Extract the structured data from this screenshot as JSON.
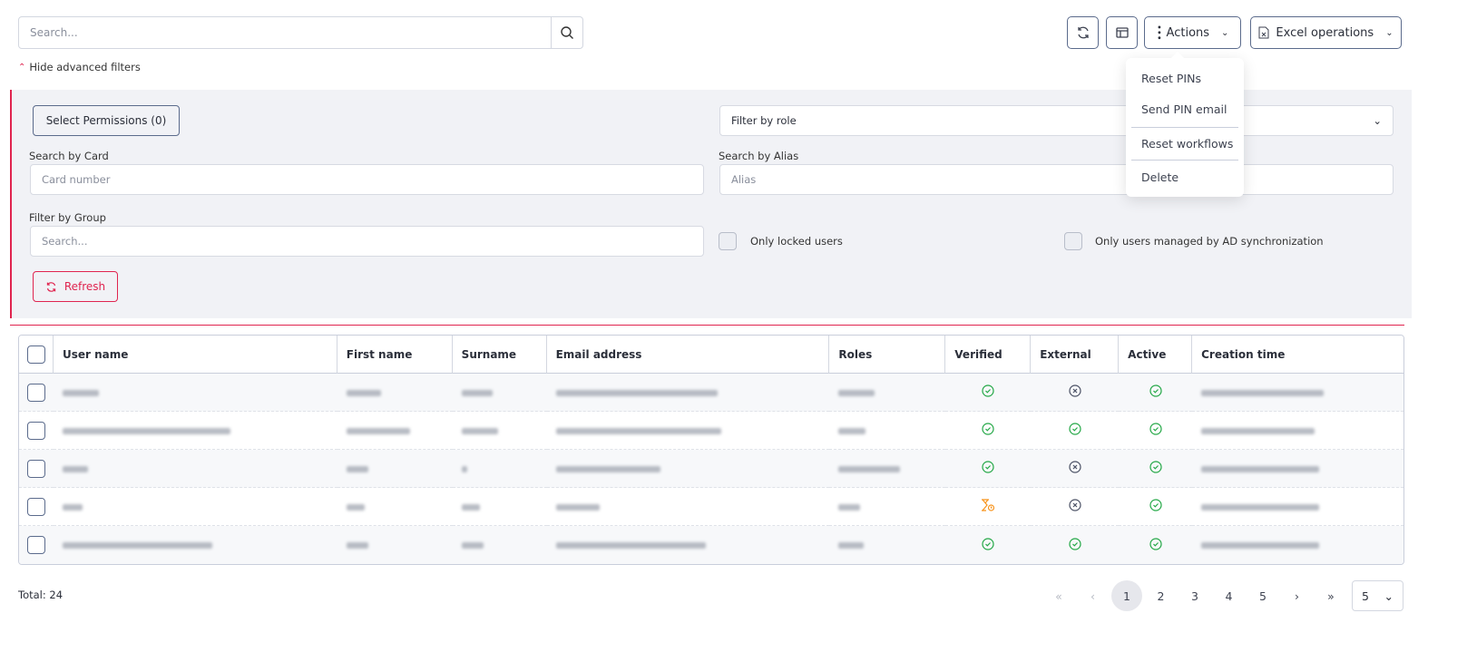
{
  "search": {
    "placeholder": "Search..."
  },
  "toolbar": {
    "refresh_icon": "refresh-icon",
    "layout_icon": "layout-icon",
    "actions_label": "Actions",
    "excel_label": "Excel operations"
  },
  "actions_menu": {
    "items": [
      "Reset PINs",
      "Send PIN email",
      "Reset workflows",
      "Delete"
    ]
  },
  "filters": {
    "toggle_label": "Hide advanced filters",
    "select_permissions": "Select Permissions (0)",
    "role_placeholder": "Filter by role",
    "card_label": "Search by Card",
    "card_placeholder": "Card number",
    "alias_label": "Search by Alias",
    "alias_placeholder": "Alias",
    "group_label": "Filter by Group",
    "group_placeholder": "Search...",
    "locked_label": "Only locked users",
    "ad_label": "Only users managed by AD synchronization",
    "refresh_label": "Refresh"
  },
  "table": {
    "columns": [
      "User name",
      "First name",
      "Surname",
      "Email address",
      "Roles",
      "Verified",
      "External",
      "Active",
      "Creation time"
    ],
    "rows": [
      {
        "verified": "yes",
        "external": "no",
        "active": "yes"
      },
      {
        "verified": "yes",
        "external": "yes",
        "active": "yes"
      },
      {
        "verified": "yes",
        "external": "no",
        "active": "yes"
      },
      {
        "verified": "pending",
        "external": "no",
        "active": "yes"
      },
      {
        "verified": "yes",
        "external": "yes",
        "active": "yes"
      }
    ]
  },
  "footer": {
    "total": "Total: 24",
    "pages": [
      "1",
      "2",
      "3",
      "4",
      "5"
    ],
    "current_page": "1",
    "page_size": "5",
    "first": "«",
    "prev": "‹",
    "next": "›",
    "last": "»"
  },
  "colors": {
    "accent": "#e0244f",
    "ok": "#22a745",
    "pending": "#f7941d",
    "no": "#4a5064",
    "border": "#5b6b8c"
  }
}
